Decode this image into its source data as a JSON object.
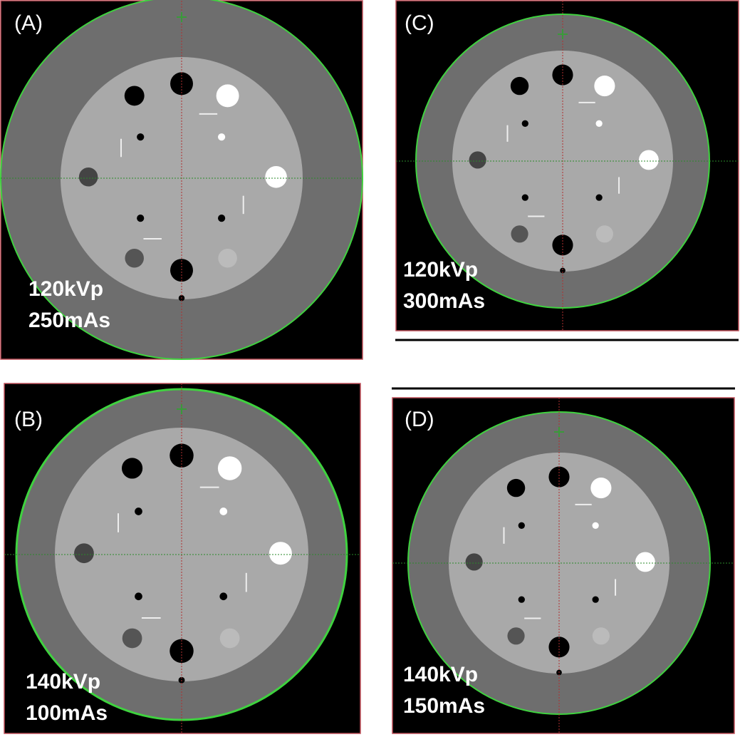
{
  "panels": [
    {
      "label": "(A)",
      "lines": [
        "120kVp",
        "250mAs"
      ]
    },
    {
      "label": "(C)",
      "lines": [
        "120kVp",
        "300mAs"
      ]
    },
    {
      "label": "(B)",
      "lines": [
        "140kVp",
        "100mAs"
      ]
    },
    {
      "label": "(D)",
      "lines": [
        "140kVp",
        "150mAs"
      ]
    }
  ]
}
